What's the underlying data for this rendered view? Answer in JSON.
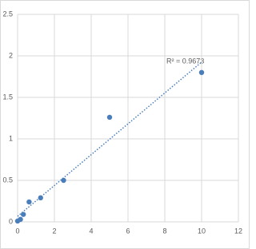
{
  "chart_data": {
    "type": "scatter",
    "x": [
      0,
      0.156,
      0.312,
      0.625,
      1.25,
      2.5,
      5,
      10
    ],
    "values": [
      0.01,
      0.03,
      0.09,
      0.24,
      0.29,
      0.5,
      1.26,
      1.8
    ],
    "color": "#4a7ebb",
    "trendline": "linear",
    "annotation": "R² = 0.9673",
    "xlim": [
      0,
      12
    ],
    "xticks": [
      0,
      2,
      4,
      6,
      8,
      10,
      12
    ],
    "ylim": [
      0,
      2.5
    ],
    "yticks": [
      0,
      0.5,
      1,
      1.5,
      2,
      2.5
    ],
    "grid": true
  }
}
